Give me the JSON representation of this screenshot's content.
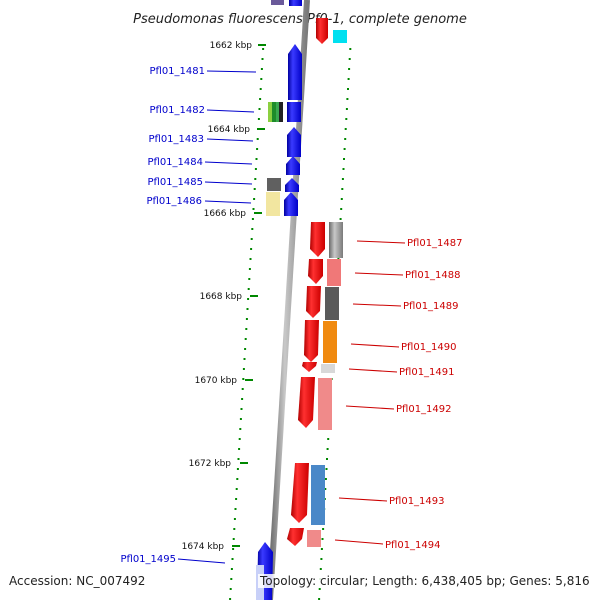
{
  "title": "Pseudomonas fluorescens Pf0-1, complete genome",
  "footer": {
    "accession": "Accession: NC_007492",
    "topology": "Topology: circular; Length: 6,438,405 bp; Genes: 5,816"
  },
  "scale_labels": [
    "1662 kbp",
    "1664 kbp",
    "1666 kbp",
    "1668 kbp",
    "1670 kbp",
    "1672 kbp",
    "1674 kbp"
  ],
  "left_genes": [
    "Pfl01_1481",
    "Pfl01_1482",
    "Pfl01_1483",
    "Pfl01_1484",
    "Pfl01_1485",
    "Pfl01_1486",
    "Pfl01_1495"
  ],
  "right_genes": [
    "Pfl01_1487",
    "Pfl01_1488",
    "Pfl01_1489",
    "Pfl01_1490",
    "Pfl01_1491",
    "Pfl01_1492",
    "Pfl01_1493",
    "Pfl01_1494"
  ],
  "colors": {
    "forward_strand": "#0000ee",
    "reverse_strand": "#ee0000",
    "backbone": "#999999",
    "tick": "#008800",
    "left_label": "#0000cc",
    "right_label": "#cc0000"
  }
}
